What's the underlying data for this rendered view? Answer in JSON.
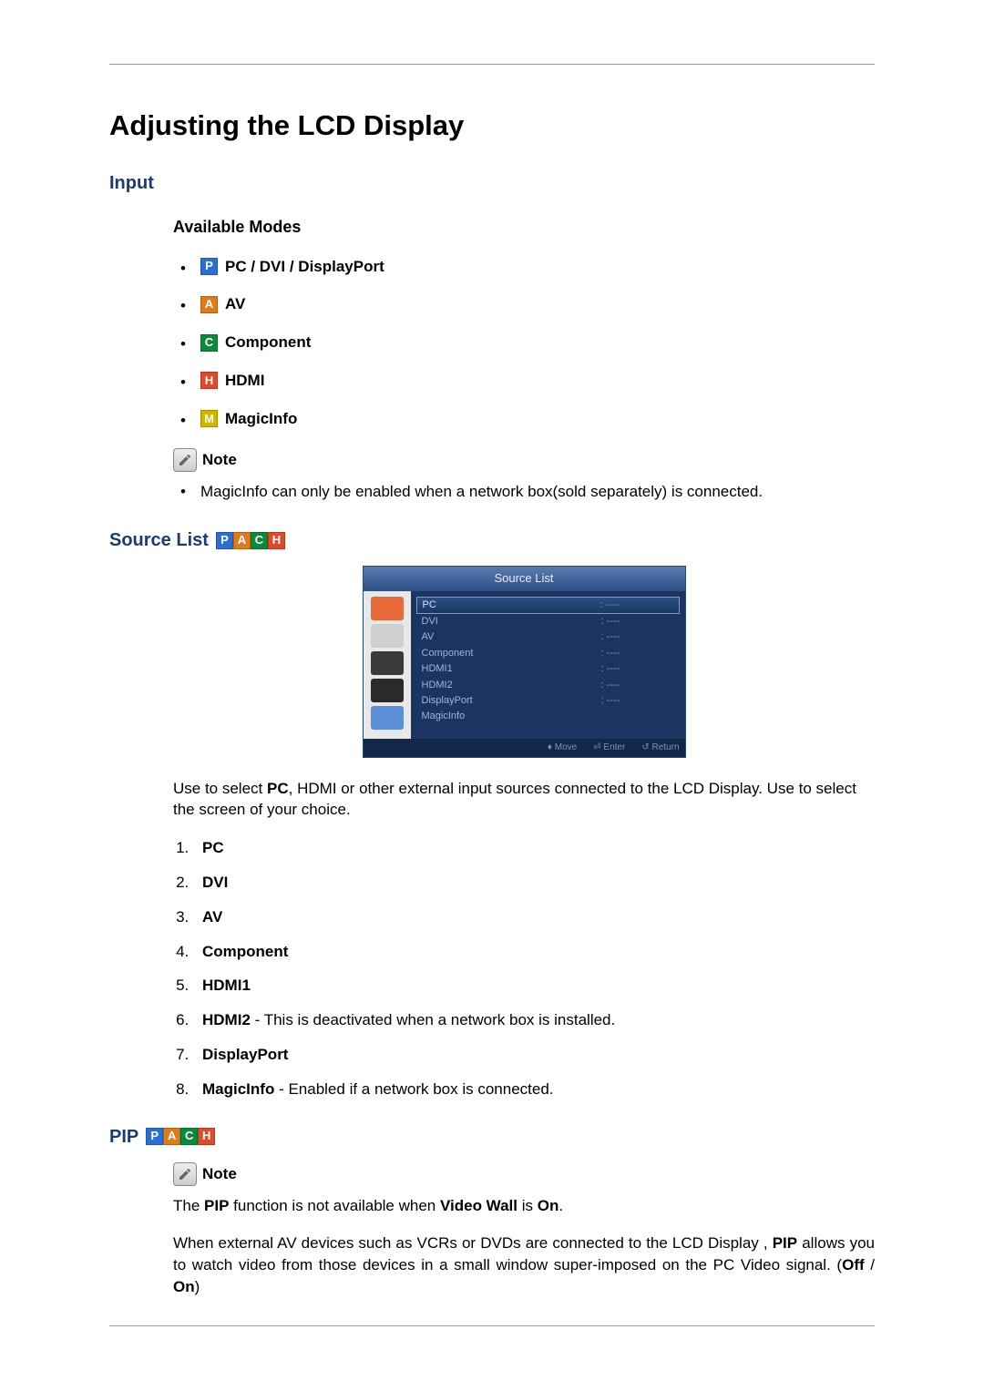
{
  "colors": {
    "heading_blue": "#1a3a7a",
    "icon_P_bg": "#2a6fd6",
    "icon_A_bg": "#e07a1a",
    "icon_C_bg": "#0a8a3a",
    "icon_H_bg": "#e04a2a",
    "icon_M_bg": "#d4b400",
    "osd_bg": "#1c3560",
    "osd_border": "#2a4a7a",
    "osd_header_grad_top": "#5a7bb0",
    "osd_header_grad_bot": "#2e4f86",
    "osd_sidebar_bg": "#e8e8e8",
    "osd_text": "#9fb6d9",
    "osd_sel_border": "#6aa3e0",
    "osd_footer_bg": "#12284a"
  },
  "page_title": "Adjusting the LCD Display",
  "input": {
    "heading": "Input",
    "available_modes_heading": "Available Modes",
    "modes": [
      {
        "letter": "P",
        "bg": "#2a6fd6",
        "label": "PC / DVI / DisplayPort"
      },
      {
        "letter": "A",
        "bg": "#e07a1a",
        "label": "AV"
      },
      {
        "letter": "C",
        "bg": "#0a8a3a",
        "label": "Component"
      },
      {
        "letter": "H",
        "bg": "#e04a2a",
        "label": "HDMI"
      },
      {
        "letter": "M",
        "bg": "#d4b400",
        "label": "MagicInfo"
      }
    ],
    "note_label": "Note",
    "note_text": "MagicInfo can only be enabled when a network box(sold separately) is connected."
  },
  "source_list": {
    "heading": "Source List",
    "badge_letters": [
      "P",
      "A",
      "C",
      "H"
    ],
    "badge_bgs": [
      "#2a6fd6",
      "#e07a1a",
      "#0a8a3a",
      "#e04a2a"
    ],
    "osd": {
      "title": "Source List",
      "rows": [
        {
          "l": "PC",
          "r": ": ----",
          "selected": true
        },
        {
          "l": "DVI",
          "r": ": ----"
        },
        {
          "l": "AV",
          "r": ": ----"
        },
        {
          "l": "Component",
          "r": ": ----"
        },
        {
          "l": "HDMI1",
          "r": ": ----"
        },
        {
          "l": "HDMI2",
          "r": ": ----"
        },
        {
          "l": "DisplayPort",
          "r": ": ----"
        },
        {
          "l": "MagicInfo",
          "r": ""
        }
      ],
      "footer": {
        "move": "Move",
        "enter": "Enter",
        "return": "Return"
      },
      "side_icons": [
        "picture-icon",
        "sound-icon",
        "clock-icon",
        "setup-icon",
        "multi-icon"
      ],
      "side_bgs": [
        "#e66a3a",
        "#cfcfcf",
        "#3a3a3a",
        "#2a2a2a",
        "#5a8ed6"
      ]
    },
    "desc_prefix": "Use to select ",
    "desc_bold1": "PC",
    "desc_rest": ", HDMI or other external input sources connected to the LCD Display. Use to select the screen of your choice.",
    "items": [
      {
        "bold": "PC",
        "rest": ""
      },
      {
        "bold": "DVI",
        "rest": ""
      },
      {
        "bold": "AV",
        "rest": ""
      },
      {
        "bold": "Component",
        "rest": ""
      },
      {
        "bold": "HDMI1",
        "rest": ""
      },
      {
        "bold": "HDMI2",
        "rest": " - This is deactivated when a network box is installed."
      },
      {
        "bold": "DisplayPort",
        "rest": ""
      },
      {
        "bold": "MagicInfo",
        "rest": " - Enabled if a network box is connected."
      }
    ]
  },
  "pip": {
    "heading": "PIP",
    "badge_letters": [
      "P",
      "A",
      "C",
      "H"
    ],
    "badge_bgs": [
      "#2a6fd6",
      "#e07a1a",
      "#0a8a3a",
      "#e04a2a"
    ],
    "note_label": "Note",
    "p1_a": "The ",
    "p1_b": "PIP",
    "p1_c": " function is not available when ",
    "p1_d": "Video Wall",
    "p1_e": " is ",
    "p1_f": "On",
    "p1_g": ".",
    "p2_a": "When external AV devices such as VCRs or DVDs are connected to the LCD Display , ",
    "p2_b": "PIP",
    "p2_c": " allows you to watch video from those devices in a small window super-imposed on the PC Video signal. (",
    "p2_d": "Off",
    "p2_e": " / ",
    "p2_f": "On",
    "p2_g": ")"
  }
}
